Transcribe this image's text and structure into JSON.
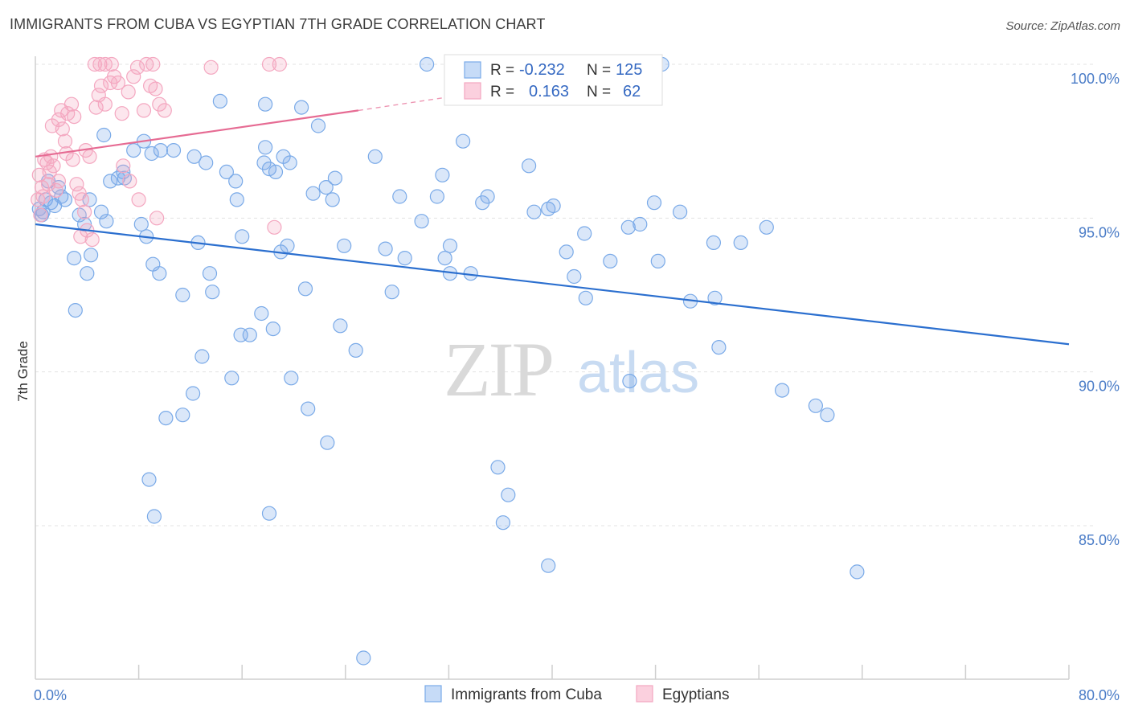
{
  "title": "IMMIGRANTS FROM CUBA VS EGYPTIAN 7TH GRADE CORRELATION CHART",
  "source": "Source: ZipAtlas.com",
  "watermark": {
    "zip": "ZIP",
    "atlas": "atlas"
  },
  "chart_data": {
    "type": "scatter",
    "ylabel": "7th Grade",
    "xlim": [
      0,
      80
    ],
    "ylim": [
      80.7,
      100.6
    ],
    "x_tick_labels": [
      {
        "value": 0,
        "label": "0.0%"
      },
      {
        "value": 80,
        "label": "80.0%"
      }
    ],
    "y_tick_labels": [
      {
        "value": 100,
        "label": "100.0%"
      },
      {
        "value": 95,
        "label": "95.0%"
      },
      {
        "value": 90,
        "label": "90.0%"
      },
      {
        "value": 85,
        "label": "85.0%"
      }
    ],
    "x_minor_ticks": [
      8,
      16,
      24,
      32,
      40,
      48,
      56,
      64,
      72,
      80
    ],
    "grid": true,
    "legend_placement": "top-center",
    "series": [
      {
        "name": "Immigrants from Cuba",
        "color": "#7aaae8",
        "line_color": "#2b6fcf",
        "r": "-0.232",
        "n": "125",
        "trend": {
          "x0": 0,
          "y0": 94.8,
          "x1": 80,
          "y1": 90.9
        },
        "points": [
          [
            0.3,
            95.3
          ],
          [
            0.5,
            95.1
          ],
          [
            0.8,
            95.6
          ],
          [
            1.0,
            96.2
          ],
          [
            1.2,
            95.5
          ],
          [
            1.5,
            95.4
          ],
          [
            1.8,
            96.0
          ],
          [
            2.0,
            95.7
          ],
          [
            2.3,
            95.6
          ],
          [
            0.6,
            95.2
          ],
          [
            3.4,
            95.1
          ],
          [
            3.8,
            94.8
          ],
          [
            4.2,
            95.6
          ],
          [
            5.1,
            95.2
          ],
          [
            5.3,
            97.7
          ],
          [
            5.8,
            96.2
          ],
          [
            6.4,
            96.3
          ],
          [
            6.8,
            96.5
          ],
          [
            6.9,
            96.3
          ],
          [
            8.2,
            94.8
          ],
          [
            3.0,
            93.7
          ],
          [
            4.3,
            93.8
          ],
          [
            4.0,
            93.2
          ],
          [
            3.1,
            92.0
          ],
          [
            7.6,
            97.2
          ],
          [
            8.4,
            97.5
          ],
          [
            9.0,
            97.1
          ],
          [
            9.7,
            97.2
          ],
          [
            10.7,
            97.2
          ],
          [
            12.3,
            97.0
          ],
          [
            13.2,
            96.8
          ],
          [
            14.8,
            96.5
          ],
          [
            15.5,
            96.2
          ],
          [
            15.6,
            95.6
          ],
          [
            16.0,
            94.4
          ],
          [
            17.7,
            96.8
          ],
          [
            18.1,
            96.6
          ],
          [
            17.8,
            97.3
          ],
          [
            18.6,
            96.5
          ],
          [
            19.2,
            97.0
          ],
          [
            19.7,
            96.8
          ],
          [
            20.6,
            98.6
          ],
          [
            21.9,
            98.0
          ],
          [
            14.3,
            98.8
          ],
          [
            17.8,
            98.7
          ],
          [
            8.6,
            94.4
          ],
          [
            9.1,
            93.5
          ],
          [
            9.6,
            93.2
          ],
          [
            11.4,
            92.5
          ],
          [
            12.6,
            94.2
          ],
          [
            13.5,
            93.2
          ],
          [
            13.7,
            92.6
          ],
          [
            12.9,
            90.5
          ],
          [
            15.2,
            89.8
          ],
          [
            15.9,
            91.2
          ],
          [
            16.6,
            91.2
          ],
          [
            17.5,
            91.9
          ],
          [
            18.4,
            91.4
          ],
          [
            19.0,
            93.9
          ],
          [
            19.5,
            94.1
          ],
          [
            19.8,
            89.8
          ],
          [
            20.9,
            92.7
          ],
          [
            21.5,
            95.8
          ],
          [
            22.5,
            96.0
          ],
          [
            23.0,
            95.6
          ],
          [
            23.2,
            96.3
          ],
          [
            23.6,
            91.5
          ],
          [
            23.9,
            94.1
          ],
          [
            24.8,
            90.7
          ],
          [
            26.3,
            97.0
          ],
          [
            27.1,
            94.0
          ],
          [
            27.6,
            92.6
          ],
          [
            28.2,
            95.7
          ],
          [
            28.6,
            93.7
          ],
          [
            29.9,
            94.9
          ],
          [
            30.3,
            100.0
          ],
          [
            31.1,
            95.7
          ],
          [
            31.5,
            96.4
          ],
          [
            31.7,
            93.7
          ],
          [
            32.1,
            94.1
          ],
          [
            32.1,
            93.2
          ],
          [
            33.7,
            93.2
          ],
          [
            34.6,
            95.5
          ],
          [
            35.0,
            95.7
          ],
          [
            33.1,
            97.5
          ],
          [
            35.8,
            86.9
          ],
          [
            36.6,
            86.0
          ],
          [
            36.2,
            85.1
          ],
          [
            38.2,
            96.7
          ],
          [
            38.6,
            95.2
          ],
          [
            39.7,
            95.3
          ],
          [
            40.1,
            95.4
          ],
          [
            39.7,
            83.7
          ],
          [
            41.1,
            93.9
          ],
          [
            41.7,
            93.1
          ],
          [
            42.5,
            94.5
          ],
          [
            42.6,
            92.4
          ],
          [
            44.5,
            93.6
          ],
          [
            45.9,
            94.7
          ],
          [
            46.8,
            94.8
          ],
          [
            47.9,
            95.5
          ],
          [
            48.2,
            93.6
          ],
          [
            49.9,
            95.2
          ],
          [
            50.7,
            92.3
          ],
          [
            52.5,
            94.2
          ],
          [
            52.6,
            92.4
          ],
          [
            52.9,
            90.8
          ],
          [
            54.6,
            94.2
          ],
          [
            56.6,
            94.7
          ],
          [
            57.8,
            89.4
          ],
          [
            60.4,
            88.9
          ],
          [
            61.3,
            88.6
          ],
          [
            63.6,
            83.5
          ],
          [
            48.5,
            100.0
          ],
          [
            9.2,
            85.3
          ],
          [
            8.8,
            86.5
          ],
          [
            10.1,
            88.5
          ],
          [
            11.4,
            88.6
          ],
          [
            12.2,
            89.3
          ],
          [
            18.1,
            85.4
          ],
          [
            21.1,
            88.8
          ],
          [
            22.6,
            87.7
          ],
          [
            25.4,
            80.7
          ],
          [
            46.0,
            89.7
          ],
          [
            5.5,
            94.9
          ]
        ]
      },
      {
        "name": "Egyptians",
        "color": "#f4a7c0",
        "line_color": "#e66b93",
        "r": "0.163",
        "n": "62",
        "trend": {
          "x0": 0,
          "y0": 97.0,
          "x1": 25,
          "y1": 98.5,
          "x2": 33,
          "y2": 99.0
        },
        "points": [
          [
            0.2,
            95.6
          ],
          [
            0.3,
            96.4
          ],
          [
            0.5,
            96.0
          ],
          [
            0.7,
            96.9
          ],
          [
            0.9,
            96.8
          ],
          [
            1.1,
            96.5
          ],
          [
            1.2,
            97.0
          ],
          [
            1.4,
            96.7
          ],
          [
            1.6,
            95.9
          ],
          [
            1.8,
            96.2
          ],
          [
            0.4,
            95.1
          ],
          [
            0.6,
            95.7
          ],
          [
            1.0,
            96.1
          ],
          [
            1.3,
            98.0
          ],
          [
            1.8,
            98.2
          ],
          [
            2.1,
            97.9
          ],
          [
            2.3,
            97.5
          ],
          [
            2.5,
            98.4
          ],
          [
            2.8,
            98.7
          ],
          [
            3.0,
            98.3
          ],
          [
            2.0,
            98.5
          ],
          [
            2.4,
            97.1
          ],
          [
            2.9,
            96.9
          ],
          [
            3.2,
            96.1
          ],
          [
            3.4,
            95.8
          ],
          [
            3.6,
            95.6
          ],
          [
            3.8,
            95.2
          ],
          [
            4.0,
            94.6
          ],
          [
            3.5,
            94.4
          ],
          [
            4.4,
            94.3
          ],
          [
            3.9,
            97.2
          ],
          [
            4.2,
            97.0
          ],
          [
            4.7,
            98.6
          ],
          [
            4.9,
            99.0
          ],
          [
            5.1,
            99.3
          ],
          [
            5.4,
            98.7
          ],
          [
            5.8,
            99.4
          ],
          [
            6.1,
            99.6
          ],
          [
            6.4,
            99.4
          ],
          [
            6.7,
            98.4
          ],
          [
            7.2,
            99.1
          ],
          [
            7.6,
            99.6
          ],
          [
            7.9,
            99.9
          ],
          [
            8.4,
            98.5
          ],
          [
            8.9,
            99.3
          ],
          [
            9.3,
            99.2
          ],
          [
            9.6,
            98.7
          ],
          [
            10.0,
            98.5
          ],
          [
            4.6,
            100.0
          ],
          [
            5.0,
            100.0
          ],
          [
            5.4,
            100.0
          ],
          [
            5.9,
            100.0
          ],
          [
            8.6,
            100.0
          ],
          [
            9.1,
            100.0
          ],
          [
            13.6,
            99.9
          ],
          [
            18.1,
            100.0
          ],
          [
            18.9,
            100.0
          ],
          [
            6.8,
            96.7
          ],
          [
            7.3,
            96.2
          ],
          [
            8.0,
            95.6
          ],
          [
            9.4,
            95.0
          ],
          [
            18.5,
            94.7
          ]
        ]
      }
    ]
  }
}
